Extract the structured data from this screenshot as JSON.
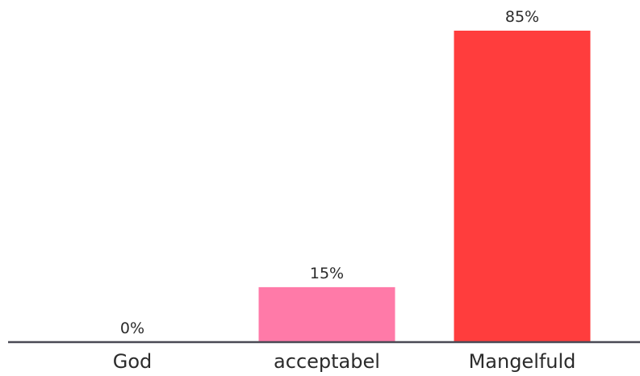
{
  "chart_data": {
    "type": "bar",
    "categories": [
      "God",
      "acceptabel",
      "Mangelfuld"
    ],
    "values": [
      0,
      15,
      85
    ],
    "value_labels": [
      "0%",
      "15%",
      "85%"
    ],
    "colors": [
      "#ff7aa8",
      "#ff7aa8",
      "#ff3d3d"
    ],
    "axis_color": "#4a4a55",
    "ylim": [
      0,
      85
    ],
    "grid": false,
    "title": "",
    "xlabel": "",
    "ylabel": ""
  }
}
